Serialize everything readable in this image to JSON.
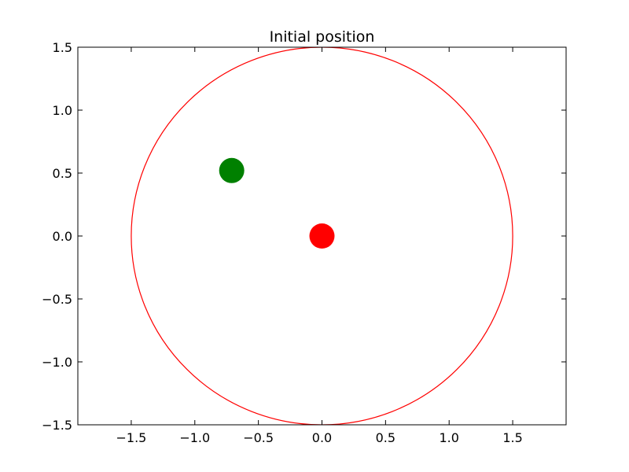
{
  "chart_data": {
    "type": "scatter",
    "title": "Initial position",
    "xlabel": "",
    "ylabel": "",
    "xlim": [
      -1.92,
      1.92
    ],
    "ylim": [
      -1.5,
      1.5
    ],
    "x_ticks": [
      -1.5,
      -1.0,
      -0.5,
      0.0,
      0.5,
      1.0,
      1.5
    ],
    "x_tick_labels": [
      "−1.5",
      "−1.0",
      "−0.5",
      "0.0",
      "0.5",
      "1.0",
      "1.5"
    ],
    "y_ticks": [
      1.5,
      1.0,
      0.5,
      0.0,
      -0.5,
      -1.0,
      -1.5
    ],
    "y_tick_labels": [
      "1.5",
      "1.0",
      "0.5",
      "0.0",
      "−0.5",
      "−1.0",
      "−1.5"
    ],
    "grid": false,
    "circle": {
      "center": [
        0.0,
        0.0
      ],
      "radius": 1.5,
      "color": "#ff0000"
    },
    "points": [
      {
        "x": -0.71,
        "y": 0.52,
        "color": "#008000"
      },
      {
        "x": 0.0,
        "y": 0.0,
        "color": "#ff0000"
      }
    ]
  }
}
